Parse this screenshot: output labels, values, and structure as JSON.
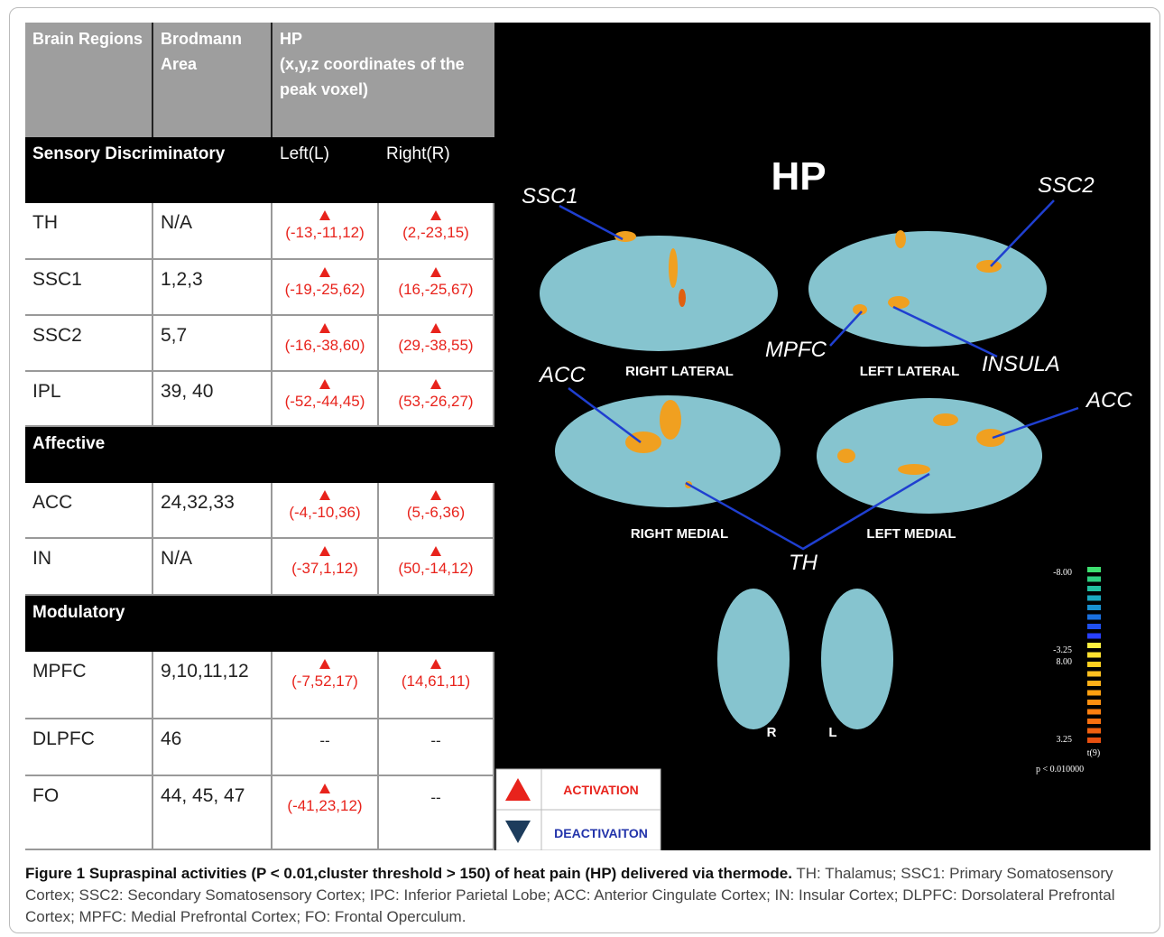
{
  "table": {
    "header": [
      "Brain Regions",
      "Brodmann Area",
      "HP",
      "(x,y,z coordinates of the  peak voxel)"
    ],
    "hemispheres": [
      "Left(L)",
      "Right(R)"
    ],
    "sections": [
      {
        "title": "Sensory Discriminatory",
        "rows": [
          [
            "TH",
            "N/A",
            "(-13,-11,12)",
            "(2,-23,15)"
          ],
          [
            "SSC1",
            "1,2,3",
            "(-19,-25,62)",
            "(16,-25,67)"
          ],
          [
            "SSC2",
            "5,7",
            "(-16,-38,60)",
            "(29,-38,55)"
          ],
          [
            "IPL",
            "39, 40",
            "(-52,-44,45)",
            "(53,-26,27)"
          ]
        ]
      },
      {
        "title": "Affective",
        "rows": [
          [
            "ACC",
            "24,32,33",
            "(-4,-10,36)",
            "(5,-6,36)"
          ],
          [
            "IN",
            "N/A",
            "(-37,1,12)",
            "(50,-14,12)"
          ]
        ]
      },
      {
        "title": "Modulatory",
        "rows": [
          [
            "MPFC",
            "9,10,11,12",
            "(-7,52,17)",
            "(14,61,11)"
          ],
          [
            "DLPFC",
            "46",
            "--",
            "--"
          ],
          [
            "FO",
            "44, 45, 47",
            "(-41,23,12)",
            "--"
          ]
        ]
      }
    ]
  },
  "figure": {
    "title": "HP",
    "labels": [
      "SSC1",
      "SSC2",
      "MPFC",
      "INSULA",
      "ACC",
      "ACC",
      "TH"
    ],
    "views": [
      "RIGHT LATERAL",
      "LEFT LATERAL",
      "RIGHT MEDIAL",
      "LEFT MEDIAL",
      "R",
      "L"
    ],
    "colorbar": [
      "-8.00",
      "-3.25",
      "8.00",
      "3.25",
      "t(9)",
      "p < 0.010000"
    ]
  },
  "legend": [
    "ACTIVATION",
    "DEACTIVAITON"
  ],
  "caption": {
    "title": "Figure 1 Supraspinal activities (P < 0.01,cluster threshold > 150) of heat pain (HP) delivered via thermode.",
    "text": "TH: Thalamus; SSC1: Primary Somatosensory Cortex; SSC2: Secondary Somatosensory Cortex; IPC: Inferior Parietal Lobe; ACC: Anterior Cingulate Cortex; IN: Insular Cortex; DLPFC: Dorsolateral Prefrontal Cortex; MPFC: Medial Prefrontal Cortex; FO: Frontal Operculum."
  }
}
